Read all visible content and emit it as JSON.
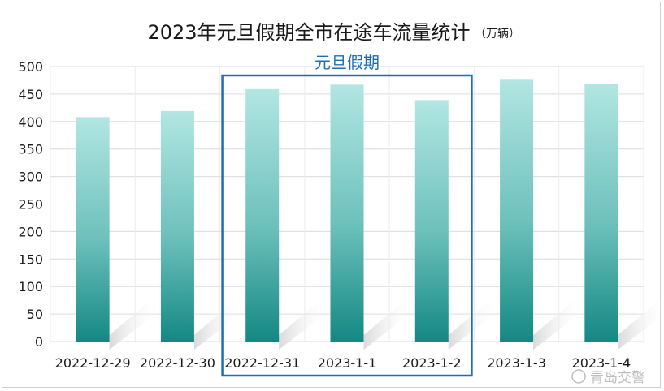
{
  "chart_data": {
    "type": "bar",
    "title": "2023年元旦假期全市在途车流量统计",
    "unit": "（万辆）",
    "categories": [
      "2022-12-29",
      "2022-12-30",
      "2022-12-31",
      "2023-1-1",
      "2023-1-2",
      "2023-1-3",
      "2023-1-4"
    ],
    "values": [
      408,
      419,
      459,
      467,
      439,
      476,
      469
    ],
    "ylim": [
      0,
      500
    ],
    "yticks": [
      "0",
      "50",
      "100",
      "150",
      "200",
      "250",
      "300",
      "350",
      "400",
      "450",
      "500"
    ],
    "grid": true,
    "highlight": {
      "label": "元旦假期",
      "categories": [
        "2022-12-31",
        "2023-1-1",
        "2023-1-2"
      ],
      "color": "#1f6fb5"
    },
    "bar_color_top": "#b2e6e2",
    "bar_color_bottom": "#148883"
  },
  "watermark": "青岛交警"
}
